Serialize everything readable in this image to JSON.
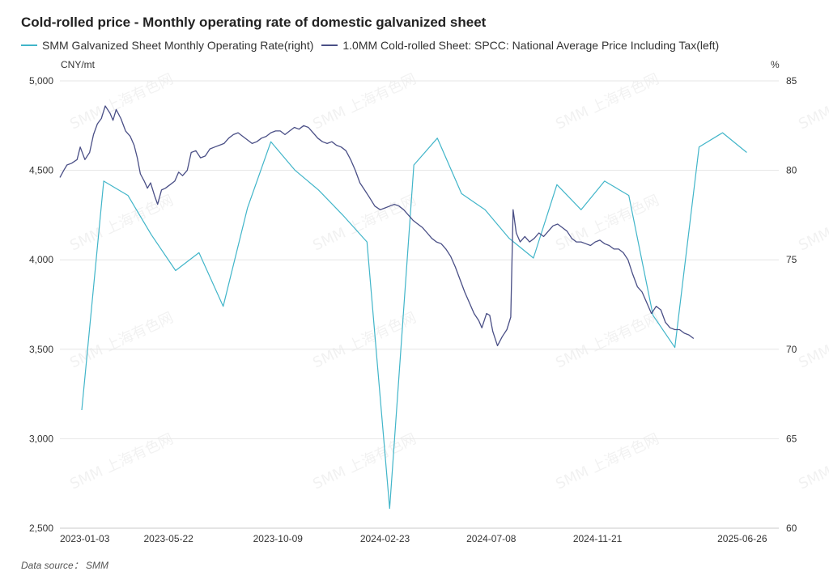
{
  "title": "Cold-rolled price - Monthly operating rate of domestic galvanized sheet",
  "source": "Data source： SMM",
  "colors": {
    "rate": "#41b5c9",
    "price": "#4a4f86",
    "grid": "#e6e6e6",
    "axis": "#c8c8c8"
  },
  "watermark": "SMM 上海有色网",
  "chart_data": {
    "type": "line",
    "title": "Cold-rolled price - Monthly operating rate of domestic galvanized sheet",
    "legend_position": "top-left",
    "grid": true,
    "x_start": "2023-01-03",
    "x_end": "2025-07-11",
    "x_ticks": [
      "2023-01-03",
      "2023-05-22",
      "2023-10-09",
      "2024-02-23",
      "2024-07-08",
      "2024-11-21",
      "2025-06-26"
    ],
    "y_left": {
      "unit": "CNY/mt",
      "min": 2500,
      "max": 5000,
      "ticks": [
        "2,500",
        "3,000",
        "3,500",
        "4,000",
        "4,500",
        "5,000"
      ]
    },
    "y_right": {
      "unit": "%",
      "min": 60,
      "max": 85,
      "ticks": [
        "60",
        "65",
        "70",
        "75",
        "80",
        "85"
      ]
    },
    "series": [
      {
        "name": "SMM Galvanized Sheet Monthly Operating Rate(right)",
        "axis": "right",
        "points": [
          [
            "2023-01-31",
            66.6
          ],
          [
            "2023-02-28",
            79.4
          ],
          [
            "2023-03-31",
            78.6
          ],
          [
            "2023-04-30",
            76.4
          ],
          [
            "2023-05-31",
            74.4
          ],
          [
            "2023-06-30",
            75.4
          ],
          [
            "2023-07-31",
            72.4
          ],
          [
            "2023-08-31",
            77.9
          ],
          [
            "2023-09-30",
            81.6
          ],
          [
            "2023-10-31",
            80.0
          ],
          [
            "2023-11-30",
            78.9
          ],
          [
            "2023-12-31",
            77.5
          ],
          [
            "2024-01-31",
            76.0
          ],
          [
            "2024-02-29",
            61.1
          ],
          [
            "2024-03-31",
            80.3
          ],
          [
            "2024-04-30",
            81.8
          ],
          [
            "2024-05-31",
            78.7
          ],
          [
            "2024-06-30",
            77.8
          ],
          [
            "2024-07-31",
            76.2
          ],
          [
            "2024-08-31",
            75.1
          ],
          [
            "2024-09-30",
            79.2
          ],
          [
            "2024-10-31",
            77.8
          ],
          [
            "2024-11-30",
            79.4
          ],
          [
            "2024-12-31",
            78.6
          ],
          [
            "2025-01-31",
            71.9
          ],
          [
            "2025-02-28",
            70.1
          ],
          [
            "2025-03-31",
            81.3
          ],
          [
            "2025-04-30",
            82.1
          ],
          [
            "2025-05-31",
            81.0
          ]
        ]
      },
      {
        "name": "1.0MM Cold-rolled Sheet: SPCC: National Average Price Including Tax(left)",
        "axis": "left",
        "points": [
          [
            "2023-01-03",
            4460
          ],
          [
            "2023-01-08",
            4500
          ],
          [
            "2023-01-12",
            4530
          ],
          [
            "2023-01-18",
            4540
          ],
          [
            "2023-01-25",
            4560
          ],
          [
            "2023-01-29",
            4630
          ],
          [
            "2023-02-04",
            4560
          ],
          [
            "2023-02-10",
            4600
          ],
          [
            "2023-02-15",
            4700
          ],
          [
            "2023-02-20",
            4760
          ],
          [
            "2023-02-25",
            4790
          ],
          [
            "2023-03-02",
            4860
          ],
          [
            "2023-03-08",
            4820
          ],
          [
            "2023-03-12",
            4780
          ],
          [
            "2023-03-16",
            4840
          ],
          [
            "2023-03-22",
            4790
          ],
          [
            "2023-03-28",
            4720
          ],
          [
            "2023-04-03",
            4690
          ],
          [
            "2023-04-08",
            4640
          ],
          [
            "2023-04-12",
            4570
          ],
          [
            "2023-04-16",
            4480
          ],
          [
            "2023-04-21",
            4440
          ],
          [
            "2023-04-25",
            4400
          ],
          [
            "2023-04-29",
            4430
          ],
          [
            "2023-05-04",
            4360
          ],
          [
            "2023-05-08",
            4310
          ],
          [
            "2023-05-13",
            4390
          ],
          [
            "2023-05-18",
            4400
          ],
          [
            "2023-05-24",
            4420
          ],
          [
            "2023-05-30",
            4440
          ],
          [
            "2023-06-04",
            4490
          ],
          [
            "2023-06-09",
            4470
          ],
          [
            "2023-06-15",
            4500
          ],
          [
            "2023-06-20",
            4600
          ],
          [
            "2023-06-26",
            4610
          ],
          [
            "2023-07-02",
            4570
          ],
          [
            "2023-07-08",
            4580
          ],
          [
            "2023-07-14",
            4620
          ],
          [
            "2023-07-20",
            4630
          ],
          [
            "2023-07-26",
            4640
          ],
          [
            "2023-08-01",
            4650
          ],
          [
            "2023-08-07",
            4680
          ],
          [
            "2023-08-13",
            4700
          ],
          [
            "2023-08-19",
            4710
          ],
          [
            "2023-08-25",
            4690
          ],
          [
            "2023-08-31",
            4670
          ],
          [
            "2023-09-06",
            4650
          ],
          [
            "2023-09-12",
            4660
          ],
          [
            "2023-09-18",
            4680
          ],
          [
            "2023-09-24",
            4690
          ],
          [
            "2023-09-30",
            4710
          ],
          [
            "2023-10-06",
            4720
          ],
          [
            "2023-10-12",
            4720
          ],
          [
            "2023-10-18",
            4700
          ],
          [
            "2023-10-24",
            4720
          ],
          [
            "2023-10-30",
            4740
          ],
          [
            "2023-11-05",
            4730
          ],
          [
            "2023-11-11",
            4750
          ],
          [
            "2023-11-17",
            4740
          ],
          [
            "2023-11-23",
            4710
          ],
          [
            "2023-11-29",
            4680
          ],
          [
            "2023-12-05",
            4660
          ],
          [
            "2023-12-11",
            4650
          ],
          [
            "2023-12-17",
            4660
          ],
          [
            "2023-12-23",
            4640
          ],
          [
            "2023-12-29",
            4630
          ],
          [
            "2024-01-04",
            4610
          ],
          [
            "2024-01-10",
            4560
          ],
          [
            "2024-01-16",
            4500
          ],
          [
            "2024-01-22",
            4430
          ],
          [
            "2024-01-28",
            4390
          ],
          [
            "2024-02-03",
            4350
          ],
          [
            "2024-02-10",
            4300
          ],
          [
            "2024-02-17",
            4280
          ],
          [
            "2024-02-23",
            4290
          ],
          [
            "2024-02-29",
            4300
          ],
          [
            "2024-03-06",
            4310
          ],
          [
            "2024-03-12",
            4300
          ],
          [
            "2024-03-18",
            4280
          ],
          [
            "2024-03-24",
            4250
          ],
          [
            "2024-03-30",
            4220
          ],
          [
            "2024-04-05",
            4200
          ],
          [
            "2024-04-11",
            4180
          ],
          [
            "2024-04-17",
            4150
          ],
          [
            "2024-04-23",
            4120
          ],
          [
            "2024-04-29",
            4100
          ],
          [
            "2024-05-05",
            4090
          ],
          [
            "2024-05-11",
            4060
          ],
          [
            "2024-05-17",
            4020
          ],
          [
            "2024-05-23",
            3960
          ],
          [
            "2024-05-29",
            3890
          ],
          [
            "2024-06-04",
            3820
          ],
          [
            "2024-06-10",
            3760
          ],
          [
            "2024-06-16",
            3700
          ],
          [
            "2024-06-22",
            3660
          ],
          [
            "2024-06-26",
            3620
          ],
          [
            "2024-07-02",
            3700
          ],
          [
            "2024-07-06",
            3690
          ],
          [
            "2024-07-10",
            3600
          ],
          [
            "2024-07-16",
            3520
          ],
          [
            "2024-07-22",
            3570
          ],
          [
            "2024-07-28",
            3610
          ],
          [
            "2024-08-02",
            3680
          ],
          [
            "2024-08-05",
            4280
          ],
          [
            "2024-08-09",
            4150
          ],
          [
            "2024-08-14",
            4100
          ],
          [
            "2024-08-20",
            4130
          ],
          [
            "2024-08-26",
            4100
          ],
          [
            "2024-09-01",
            4120
          ],
          [
            "2024-09-07",
            4150
          ],
          [
            "2024-09-13",
            4130
          ],
          [
            "2024-09-19",
            4160
          ],
          [
            "2024-09-25",
            4190
          ],
          [
            "2024-10-01",
            4200
          ],
          [
            "2024-10-07",
            4180
          ],
          [
            "2024-10-13",
            4160
          ],
          [
            "2024-10-19",
            4120
          ],
          [
            "2024-10-25",
            4100
          ],
          [
            "2024-10-31",
            4100
          ],
          [
            "2024-11-06",
            4090
          ],
          [
            "2024-11-12",
            4080
          ],
          [
            "2024-11-18",
            4100
          ],
          [
            "2024-11-24",
            4110
          ],
          [
            "2024-11-30",
            4090
          ],
          [
            "2024-12-06",
            4080
          ],
          [
            "2024-12-12",
            4060
          ],
          [
            "2024-12-18",
            4060
          ],
          [
            "2024-12-24",
            4040
          ],
          [
            "2024-12-30",
            4000
          ],
          [
            "2025-01-05",
            3920
          ],
          [
            "2025-01-11",
            3850
          ],
          [
            "2025-01-17",
            3820
          ],
          [
            "2025-01-23",
            3760
          ],
          [
            "2025-01-29",
            3700
          ],
          [
            "2025-02-04",
            3740
          ],
          [
            "2025-02-10",
            3720
          ],
          [
            "2025-02-16",
            3650
          ],
          [
            "2025-02-22",
            3620
          ],
          [
            "2025-02-28",
            3610
          ],
          [
            "2025-03-06",
            3610
          ],
          [
            "2025-03-12",
            3590
          ],
          [
            "2025-03-18",
            3580
          ],
          [
            "2025-03-24",
            3560
          ]
        ]
      }
    ]
  }
}
